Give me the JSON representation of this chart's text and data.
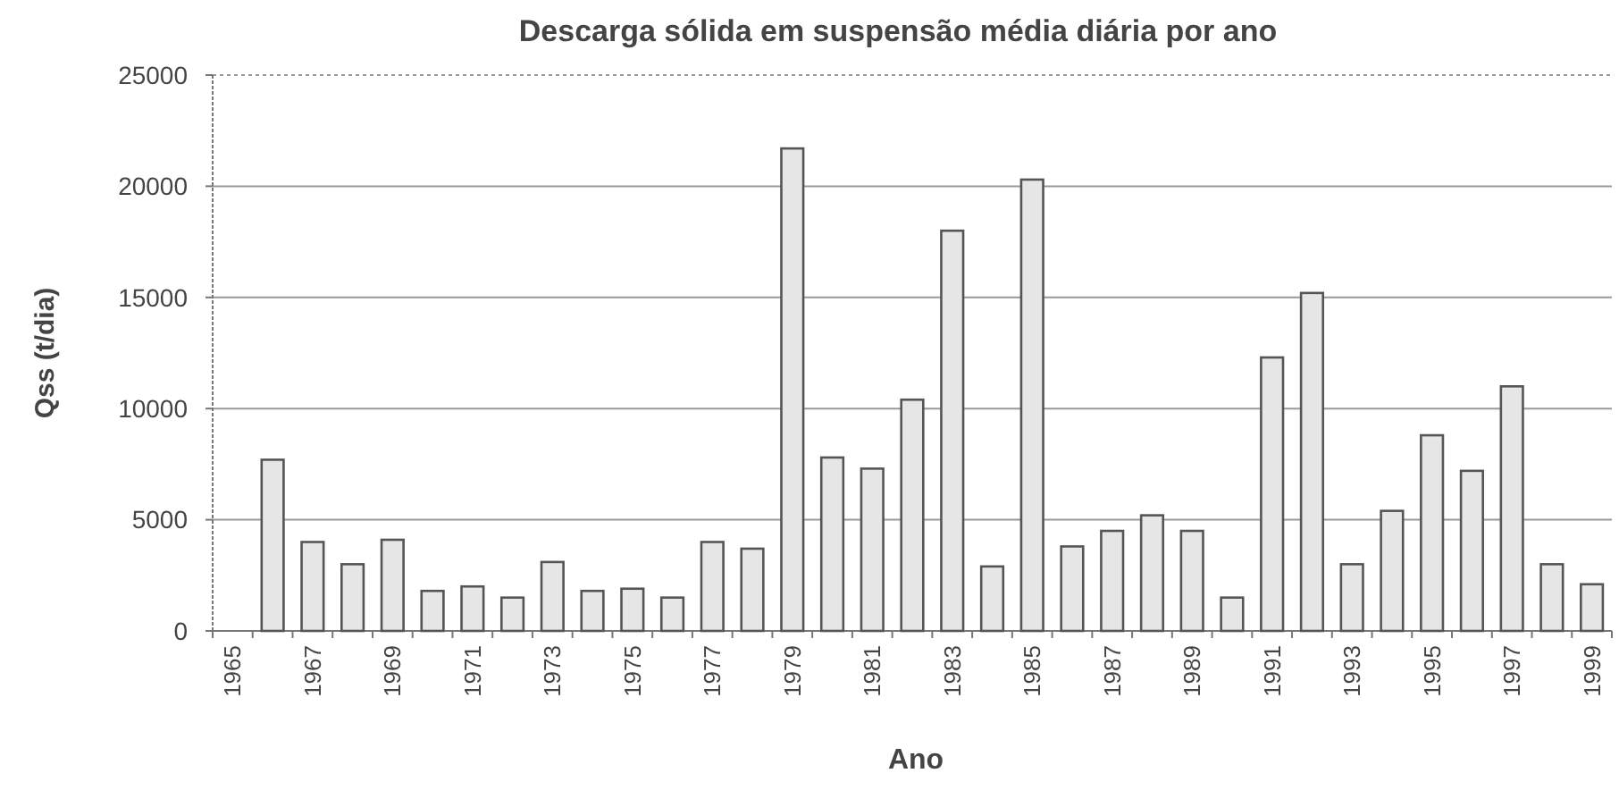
{
  "chart_data": {
    "type": "bar",
    "title": "Descarga sólida em suspensão média diária por ano",
    "xlabel": "Ano",
    "ylabel": "Qss (t/dia)",
    "categories": [
      "1965",
      null,
      "1967",
      null,
      "1969",
      null,
      "1971",
      null,
      "1973",
      null,
      "1975",
      null,
      "1977",
      null,
      "1979",
      null,
      "1981",
      null,
      "1983",
      null,
      "1985",
      null,
      "1987",
      null,
      "1989",
      null,
      "1991",
      null,
      "1993",
      null,
      "1995",
      null,
      "1997",
      null,
      "1999"
    ],
    "values": [
      null,
      7700,
      4000,
      3000,
      4100,
      1800,
      2000,
      1500,
      3100,
      1800,
      1900,
      1500,
      4000,
      3700,
      21700,
      7800,
      7300,
      10400,
      18000,
      2900,
      20300,
      3800,
      4500,
      5200,
      4500,
      1500,
      12300,
      15200,
      3000,
      5400,
      8800,
      7200,
      11000,
      3000,
      2100
    ],
    "color": "#e6e6e6",
    "ylim": [
      0,
      25000
    ],
    "yticks": [
      0,
      5000,
      10000,
      15000,
      20000,
      25000
    ],
    "grid": "y"
  }
}
